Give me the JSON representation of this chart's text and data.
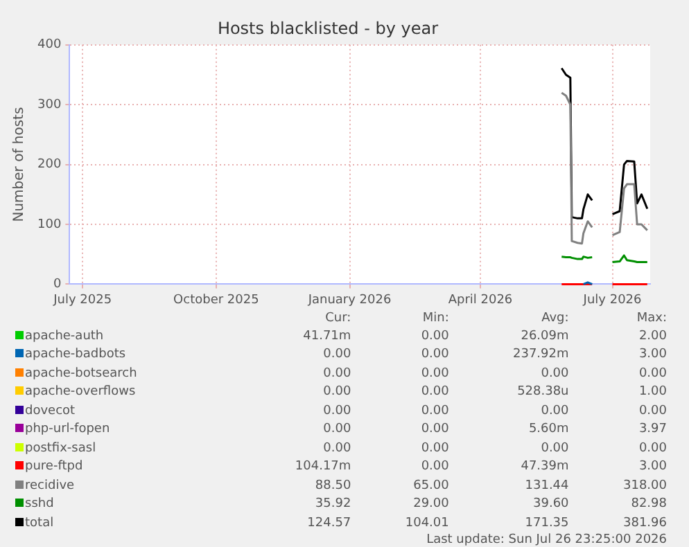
{
  "chart_data": {
    "type": "line",
    "title": "Hosts blacklisted - by year",
    "ylabel": "Number of hosts",
    "x": [
      "2026-05-27",
      "2026-05-30",
      "2026-06-02",
      "2026-06-03",
      "2026-06-07",
      "2026-06-10",
      "2026-06-11",
      "2026-06-14",
      "2026-06-17",
      "2026-06-24",
      "2026-07-01",
      "2026-07-06",
      "2026-07-09",
      "2026-07-11",
      "2026-07-16",
      "2026-07-18",
      "2026-07-21",
      "2026-07-25"
    ],
    "xlim": [
      "2025-06-22",
      "2026-07-27"
    ],
    "xticks": [
      {
        "value": "2025-07-01",
        "label": "July 2025"
      },
      {
        "value": "2025-10-01",
        "label": "October 2025"
      },
      {
        "value": "2026-01-01",
        "label": "January 2026"
      },
      {
        "value": "2026-04-01",
        "label": "April 2026"
      },
      {
        "value": "2026-07-01",
        "label": "July 2026"
      }
    ],
    "ylim": [
      0,
      400
    ],
    "yticks": [
      0,
      100,
      200,
      300,
      400
    ],
    "grid": true,
    "legend": "bottom",
    "marker": "none",
    "series": [
      {
        "name": "apache-auth",
        "color": "#00cc00",
        "values": [
          null,
          null,
          null,
          null,
          null,
          null,
          null,
          null,
          null,
          null,
          null,
          null,
          null,
          null,
          null,
          null,
          null,
          null
        ]
      },
      {
        "name": "apache-badbots",
        "color": "#0066b3",
        "values": [
          null,
          null,
          null,
          null,
          null,
          null,
          0,
          3,
          0,
          null,
          null,
          null,
          null,
          null,
          null,
          null,
          null,
          null
        ]
      },
      {
        "name": "apache-botsearch",
        "color": "#ff8000",
        "values": [
          null,
          null,
          null,
          null,
          null,
          null,
          null,
          null,
          null,
          null,
          null,
          null,
          null,
          null,
          null,
          null,
          null,
          null
        ]
      },
      {
        "name": "apache-overflows",
        "color": "#ffcc00",
        "values": [
          null,
          null,
          null,
          null,
          null,
          null,
          null,
          null,
          null,
          null,
          null,
          null,
          null,
          null,
          null,
          null,
          null,
          null
        ]
      },
      {
        "name": "dovecot",
        "color": "#330099",
        "values": [
          null,
          null,
          null,
          null,
          null,
          null,
          null,
          null,
          null,
          null,
          null,
          null,
          null,
          null,
          null,
          null,
          null,
          null
        ]
      },
      {
        "name": "php-url-fopen",
        "color": "#990099",
        "values": [
          null,
          null,
          null,
          null,
          null,
          null,
          null,
          null,
          null,
          null,
          null,
          null,
          null,
          null,
          null,
          null,
          null,
          null
        ]
      },
      {
        "name": "postfix-sasl",
        "color": "#ccff00",
        "values": [
          null,
          null,
          null,
          null,
          null,
          null,
          null,
          null,
          null,
          null,
          null,
          null,
          null,
          null,
          null,
          null,
          null,
          null
        ]
      },
      {
        "name": "pure-ftpd",
        "color": "#ff0000",
        "values": [
          0,
          0,
          0,
          0,
          0,
          0,
          0,
          0,
          0,
          null,
          0,
          0,
          0,
          0,
          0,
          0,
          0,
          0
        ]
      },
      {
        "name": "recidive",
        "color": "#808080",
        "values": [
          320,
          315,
          300,
          72,
          69,
          68,
          85,
          105,
          95,
          null,
          82,
          87,
          160,
          167,
          167,
          100,
          100,
          90
        ]
      },
      {
        "name": "sshd",
        "color": "#008f00",
        "values": [
          46,
          45,
          45,
          44,
          42,
          42,
          46,
          44,
          45,
          null,
          37,
          38,
          48,
          40,
          38,
          37,
          37,
          37
        ]
      },
      {
        "name": "total",
        "color": "#000000",
        "values": [
          361,
          350,
          345,
          112,
          110,
          110,
          125,
          150,
          140,
          null,
          117,
          122,
          200,
          206,
          205,
          135,
          150,
          126
        ]
      }
    ],
    "annotations": [
      "Cur:",
      "Min:",
      "Avg:",
      "Max:",
      "41.71m",
      "0.00",
      "26.09m",
      "2.00",
      "0.00",
      "0.00",
      "237.92m",
      "3.00",
      "0.00",
      "0.00",
      "0.00",
      "0.00",
      "0.00",
      "0.00",
      "528.38u",
      "1.00",
      "0.00",
      "0.00",
      "0.00",
      "0.00",
      "0.00",
      "0.00",
      "5.60m",
      "3.97",
      "0.00",
      "0.00",
      "0.00",
      "0.00",
      "104.17m",
      "0.00",
      "47.39m",
      "3.00",
      "88.50",
      "65.00",
      "131.44",
      "318.00",
      "35.92",
      "29.00",
      "39.60",
      "82.98",
      "124.57",
      "104.01",
      "171.35",
      "381.96",
      "Last update: Sun Jul 26 23:25:00 2026"
    ]
  }
}
